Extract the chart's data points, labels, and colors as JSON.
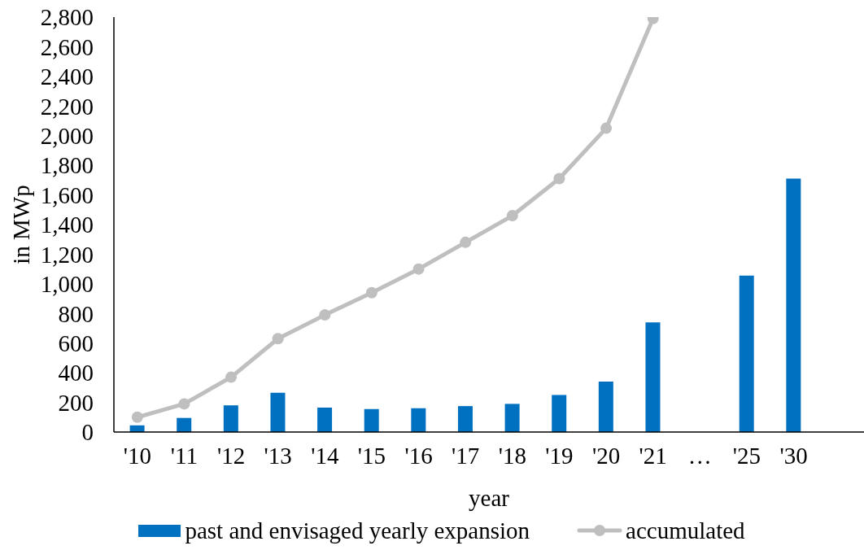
{
  "chart_data": {
    "type": "bar",
    "xlabel": "year",
    "ylabel": "in MWp",
    "categories": [
      "'10",
      "'11",
      "'12",
      "'13",
      "'14",
      "'15",
      "'16",
      "'17",
      "'18",
      "'19",
      "'20",
      "'21",
      "…",
      "'25",
      "'30",
      null
    ],
    "series": [
      {
        "name": "past and envisaged yearly expansion",
        "color": "#0070c0",
        "values": [
          45,
          95,
          180,
          265,
          165,
          155,
          160,
          175,
          190,
          250,
          340,
          740,
          null,
          1055,
          1710,
          null
        ]
      },
      {
        "name": "accumulated",
        "type": "line",
        "color": "#bfbfbf",
        "marker": "circle",
        "values": [
          100,
          190,
          370,
          630,
          790,
          940,
          1100,
          1280,
          1460,
          1710,
          2050,
          2790,
          null,
          null,
          null,
          null
        ]
      }
    ],
    "ylim": [
      0,
      2800
    ],
    "yticks": [
      0,
      200,
      400,
      600,
      800,
      {
        "value": 1000,
        "label": "1,000"
      },
      {
        "value": 1200,
        "label": "1,200"
      },
      {
        "value": 1400,
        "label": "1,400"
      },
      {
        "value": 1600,
        "label": "1,600"
      },
      {
        "value": 1800,
        "label": "1,800"
      },
      {
        "value": 2000,
        "label": "2,000"
      },
      {
        "value": 2200,
        "label": "2,200"
      },
      {
        "value": 2400,
        "label": "2,400"
      },
      {
        "value": 2600,
        "label": "2,600"
      },
      {
        "value": 2800,
        "label": "2,800"
      }
    ],
    "legend": "bottom"
  }
}
